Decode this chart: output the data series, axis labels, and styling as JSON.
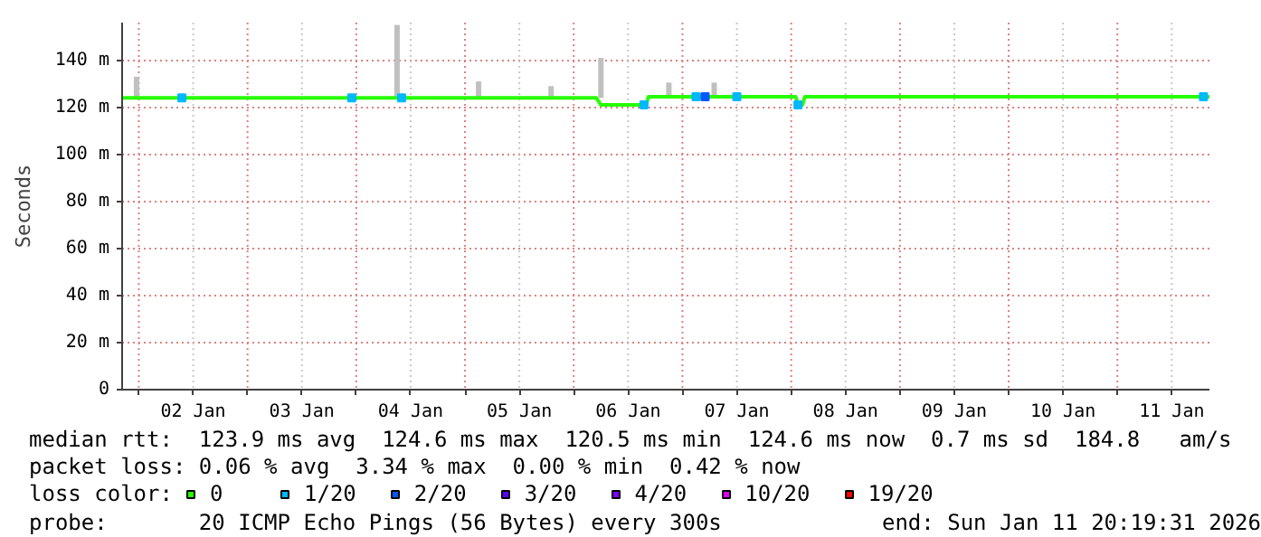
{
  "chart_data": {
    "type": "line",
    "ylabel": "Seconds",
    "legend_title": "loss color:",
    "legend": "bottom",
    "grid": true,
    "xlim": [
      "2026-01-01T20:19",
      "2026-01-11T20:19"
    ],
    "xticks": [
      {
        "value": "2026-01-02",
        "label": null
      },
      {
        "value": "2026-01-02T12:00",
        "label": "02 Jan"
      },
      {
        "value": "2026-01-03",
        "label": null
      },
      {
        "value": "2026-01-03T12:00",
        "label": "03 Jan"
      },
      {
        "value": "2026-01-04",
        "label": null
      },
      {
        "value": "2026-01-04T12:00",
        "label": "04 Jan"
      },
      {
        "value": "2026-01-05",
        "label": null
      },
      {
        "value": "2026-01-05T12:00",
        "label": "05 Jan"
      },
      {
        "value": "2026-01-06",
        "label": null
      },
      {
        "value": "2026-01-06T12:00",
        "label": "06 Jan"
      },
      {
        "value": "2026-01-07",
        "label": null
      },
      {
        "value": "2026-01-07T12:00",
        "label": "07 Jan"
      },
      {
        "value": "2026-01-08",
        "label": null
      },
      {
        "value": "2026-01-08T12:00",
        "label": "08 Jan"
      },
      {
        "value": "2026-01-09",
        "label": null
      },
      {
        "value": "2026-01-09T12:00",
        "label": "09 Jan"
      },
      {
        "value": "2026-01-10",
        "label": null
      },
      {
        "value": "2026-01-10T12:00",
        "label": "10 Jan"
      },
      {
        "value": "2026-01-11",
        "label": null
      },
      {
        "value": "2026-01-11T12:00",
        "label": "11 Jan"
      }
    ],
    "ylim": [
      0,
      156
    ],
    "yticks": [
      0,
      {
        "value": 20,
        "label": "20 m"
      },
      {
        "value": 40,
        "label": "40 m"
      },
      {
        "value": 60,
        "label": "60 m"
      },
      {
        "value": 80,
        "label": "80 m"
      },
      {
        "value": 100,
        "label": "100 m"
      },
      {
        "value": 120,
        "label": "120 m"
      },
      {
        "value": 140,
        "label": "140 m"
      }
    ],
    "series": [
      {
        "type": "bar",
        "color": "#c0c0c0",
        "x": [
          "2026-01-01T23:30",
          "2026-01-04T09:00",
          "2026-01-05T03:00",
          "2026-01-05T19:00",
          "2026-01-06T06:00",
          "2026-01-06T21:00",
          "2026-01-07T07:00"
        ],
        "base": [
          124,
          124,
          124,
          124,
          124,
          124.5,
          124.5
        ],
        "values": [
          9,
          31,
          7,
          5,
          17,
          6,
          6
        ]
      },
      {
        "name": "0",
        "color": "#26ff00",
        "x": [
          "2026-01-01T20:19",
          "2026-01-06T05:00",
          "2026-01-06T06:00",
          "2026-01-06T16:00",
          "2026-01-06T16:30",
          "2026-01-08T01:00",
          "2026-01-08T01:30",
          "2026-01-08T02:30",
          "2026-01-08T03:00",
          "2026-01-11T20:19"
        ],
        "values": [
          124,
          124,
          121,
          121,
          124.5,
          124.5,
          121,
          121,
          124.5,
          124.5
        ]
      },
      {
        "type": "scatter",
        "marker": "square",
        "name": "1/20",
        "color": "#00b8ff",
        "x": [
          "2026-01-02T09:30",
          "2026-01-03T23:00",
          "2026-01-04T10:00",
          "2026-01-06T15:30",
          "2026-01-07T03:00",
          "2026-01-07T12:00",
          "2026-01-08T01:30",
          "2026-01-11T19:00"
        ],
        "values": [
          124,
          124,
          124,
          121,
          124.5,
          124.5,
          121,
          124.5
        ]
      },
      {
        "type": "scatter",
        "marker": "square",
        "name": "2/20",
        "color": "#0059ff",
        "x": [
          "2026-01-07T05:00"
        ],
        "values": [
          124.5
        ]
      },
      {
        "type": "scatter",
        "name": "3/20",
        "color": "#5e00ff"
      },
      {
        "type": "scatter",
        "name": "4/20",
        "color": "#7e00ff"
      },
      {
        "type": "scatter",
        "name": "10/20",
        "color": "#dd00ff"
      },
      {
        "type": "scatter",
        "name": "19/20",
        "color": "#ff0000"
      }
    ],
    "annotations": [
      "median rtt:  123.9 ms avg  124.6 ms max  120.5 ms min  124.6 ms now  0.7 ms sd  184.8   am/s",
      "packet loss: 0.06 % avg  3.34 % max  0.00 % min  0.42 % now",
      "probe:       20 ICMP Echo Pings (56 Bytes) every 300s",
      "end: Sun Jan 11 20:19:31 2026"
    ]
  }
}
